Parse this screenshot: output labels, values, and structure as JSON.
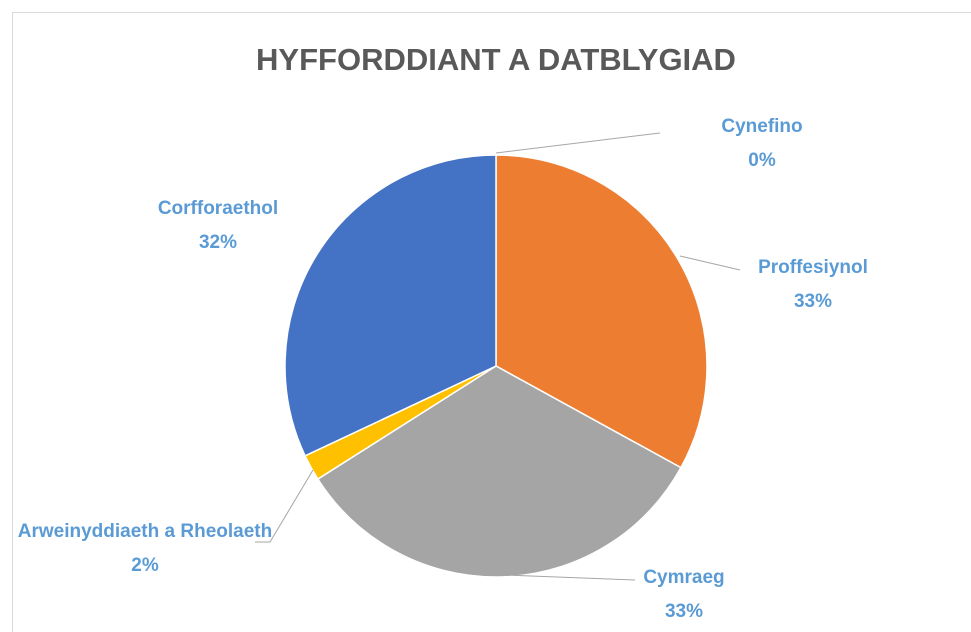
{
  "chart_data": {
    "type": "pie",
    "title": "HYFFORDDIANT A DATBLYGIAD",
    "categories": [
      "Cynefino",
      "Proffesiynol",
      "Cymraeg",
      "Arweinyddiaeth a Rheolaeth",
      "Corfforaethol"
    ],
    "values": [
      0,
      33,
      33,
      2,
      32
    ],
    "value_labels": [
      "0%",
      "33%",
      "33%",
      "2%",
      "32%"
    ],
    "colors": [
      "#5B9BD5",
      "#ED7D31",
      "#A5A5A5",
      "#FFC000",
      "#4472C4"
    ]
  }
}
